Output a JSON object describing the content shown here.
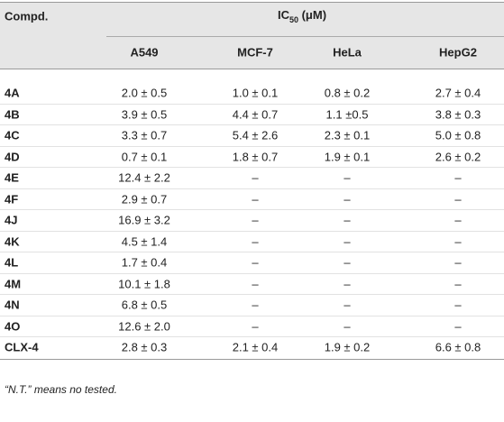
{
  "table": {
    "header": {
      "compd": "Compd.",
      "group": {
        "main": "IC",
        "sub": "50",
        "rest": " (μM)"
      },
      "columns": [
        "A549",
        "MCF-7",
        "HeLa",
        "HepG2"
      ]
    },
    "rows": [
      [
        "4A",
        "2.0 ± 0.5",
        "1.0 ± 0.1",
        "0.8 ± 0.2",
        "2.7 ± 0.4"
      ],
      [
        "4B",
        "3.9 ± 0.5",
        "4.4 ± 0.7",
        "1.1 ±0.5",
        "3.8 ± 0.3"
      ],
      [
        "4C",
        "3.3 ± 0.7",
        "5.4 ± 2.6",
        "2.3 ± 0.1",
        "5.0 ± 0.8"
      ],
      [
        "4D",
        "0.7 ± 0.1",
        "1.8 ± 0.7",
        "1.9 ± 0.1",
        "2.6 ± 0.2"
      ],
      [
        "4E",
        "12.4 ± 2.2",
        "–",
        "–",
        "–"
      ],
      [
        "4F",
        "2.9 ± 0.7",
        "–",
        "–",
        "–"
      ],
      [
        "4J",
        "16.9 ± 3.2",
        "–",
        "–",
        "–"
      ],
      [
        "4K",
        "4.5 ± 1.4",
        "–",
        "–",
        "–"
      ],
      [
        "4L",
        "1.7 ± 0.4",
        "–",
        "–",
        "–"
      ],
      [
        "4M",
        "10.1 ± 1.8",
        "–",
        "–",
        "–"
      ],
      [
        "4N",
        "6.8 ± 0.5",
        "–",
        "–",
        "–"
      ],
      [
        "4O",
        "12.6 ± 2.0",
        "–",
        "–",
        "–"
      ],
      [
        "CLX-4",
        "2.8 ± 0.3",
        "2.1 ± 0.4",
        "1.9 ± 0.2",
        "6.6 ± 0.8"
      ]
    ],
    "footnote": "“N.T.” means no tested."
  }
}
